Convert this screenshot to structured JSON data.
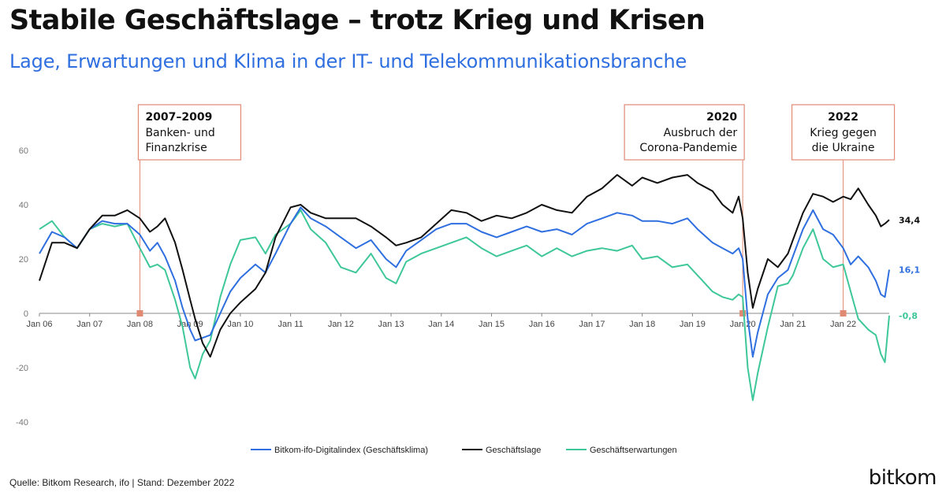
{
  "header": {
    "title": "Stabile Geschäftslage – trotz Krieg und Krisen",
    "subtitle": "Lage, Erwartungen und Klima in der IT- und Telekommunikationsbranche"
  },
  "footer": {
    "source": "Quelle: Bitkom Research, ifo | Stand: Dezember 2022",
    "logo": "bitkom"
  },
  "colors": {
    "klima": "#2f6fe0",
    "lage": "#111111",
    "erwartungen": "#3ec79a",
    "annotation": "#e08a74",
    "axis": "#777777"
  },
  "chart_data": {
    "type": "line",
    "ylim": [
      -40,
      60
    ],
    "yticks": [
      -40,
      -20,
      0,
      20,
      40,
      60
    ],
    "xlim": [
      2006.0,
      2022.917
    ],
    "xticks": [
      {
        "value": 2006,
        "label": "Jan 06"
      },
      {
        "value": 2007,
        "label": "Jan 07"
      },
      {
        "value": 2008,
        "label": "Jan 08"
      },
      {
        "value": 2009,
        "label": "Jan 09"
      },
      {
        "value": 2010,
        "label": "Jan 10"
      },
      {
        "value": 2011,
        "label": "Jan 11"
      },
      {
        "value": 2012,
        "label": "Jan 12"
      },
      {
        "value": 2013,
        "label": "Jan 13"
      },
      {
        "value": 2014,
        "label": "Jan 14"
      },
      {
        "value": 2015,
        "label": "Jan 15"
      },
      {
        "value": 2016,
        "label": "Jan 16"
      },
      {
        "value": 2017,
        "label": "Jan 17"
      },
      {
        "value": 2018,
        "label": "Jan 18"
      },
      {
        "value": 2019,
        "label": "Jan 19"
      },
      {
        "value": 2020,
        "label": "Jan 20"
      },
      {
        "value": 2021,
        "label": "Jan 21"
      },
      {
        "value": 2022,
        "label": "Jan 22"
      }
    ],
    "legend_position": "bottom-center",
    "series": [
      {
        "name": "Bitkom-ifo-Digitalindex (Geschäftsklima)",
        "key": "klima",
        "end_label": "16,1",
        "points": [
          [
            2006.0,
            22
          ],
          [
            2006.25,
            30
          ],
          [
            2006.5,
            28
          ],
          [
            2006.75,
            24
          ],
          [
            2007.0,
            31
          ],
          [
            2007.25,
            34
          ],
          [
            2007.5,
            33
          ],
          [
            2007.75,
            33
          ],
          [
            2008.0,
            29
          ],
          [
            2008.2,
            23
          ],
          [
            2008.35,
            26
          ],
          [
            2008.5,
            21
          ],
          [
            2008.7,
            12
          ],
          [
            2008.85,
            2
          ],
          [
            2009.0,
            -6
          ],
          [
            2009.1,
            -10
          ],
          [
            2009.25,
            -9
          ],
          [
            2009.4,
            -8
          ],
          [
            2009.6,
            0
          ],
          [
            2009.8,
            8
          ],
          [
            2010.0,
            13
          ],
          [
            2010.3,
            18
          ],
          [
            2010.5,
            15
          ],
          [
            2010.7,
            22
          ],
          [
            2011.0,
            33
          ],
          [
            2011.2,
            39
          ],
          [
            2011.4,
            35
          ],
          [
            2011.7,
            32
          ],
          [
            2012.0,
            28
          ],
          [
            2012.3,
            24
          ],
          [
            2012.6,
            27
          ],
          [
            2012.9,
            20
          ],
          [
            2013.1,
            17
          ],
          [
            2013.3,
            23
          ],
          [
            2013.6,
            27
          ],
          [
            2013.9,
            31
          ],
          [
            2014.2,
            33
          ],
          [
            2014.5,
            33
          ],
          [
            2014.8,
            30
          ],
          [
            2015.1,
            28
          ],
          [
            2015.4,
            30
          ],
          [
            2015.7,
            32
          ],
          [
            2016.0,
            30
          ],
          [
            2016.3,
            31
          ],
          [
            2016.6,
            29
          ],
          [
            2016.9,
            33
          ],
          [
            2017.2,
            35
          ],
          [
            2017.5,
            37
          ],
          [
            2017.8,
            36
          ],
          [
            2018.0,
            34
          ],
          [
            2018.3,
            34
          ],
          [
            2018.6,
            33
          ],
          [
            2018.9,
            35
          ],
          [
            2019.1,
            31
          ],
          [
            2019.4,
            26
          ],
          [
            2019.6,
            24
          ],
          [
            2019.8,
            22
          ],
          [
            2019.92,
            24
          ],
          [
            2020.0,
            20
          ],
          [
            2020.1,
            -2
          ],
          [
            2020.2,
            -16
          ],
          [
            2020.3,
            -7
          ],
          [
            2020.5,
            7
          ],
          [
            2020.7,
            13
          ],
          [
            2020.9,
            16
          ],
          [
            2021.0,
            21
          ],
          [
            2021.2,
            31
          ],
          [
            2021.4,
            38
          ],
          [
            2021.6,
            31
          ],
          [
            2021.8,
            29
          ],
          [
            2022.0,
            24
          ],
          [
            2022.15,
            18
          ],
          [
            2022.3,
            21
          ],
          [
            2022.5,
            17
          ],
          [
            2022.65,
            12
          ],
          [
            2022.75,
            7
          ],
          [
            2022.83,
            6
          ],
          [
            2022.917,
            16.1
          ]
        ]
      },
      {
        "name": "Geschäftslage",
        "key": "lage",
        "end_label": "34,4",
        "points": [
          [
            2006.0,
            12
          ],
          [
            2006.25,
            26
          ],
          [
            2006.5,
            26
          ],
          [
            2006.75,
            24
          ],
          [
            2007.0,
            31
          ],
          [
            2007.25,
            36
          ],
          [
            2007.5,
            36
          ],
          [
            2007.75,
            38
          ],
          [
            2008.0,
            35
          ],
          [
            2008.2,
            30
          ],
          [
            2008.35,
            32
          ],
          [
            2008.5,
            35
          ],
          [
            2008.7,
            26
          ],
          [
            2008.85,
            16
          ],
          [
            2009.0,
            5
          ],
          [
            2009.1,
            -2
          ],
          [
            2009.25,
            -11
          ],
          [
            2009.4,
            -16
          ],
          [
            2009.6,
            -6
          ],
          [
            2009.8,
            0
          ],
          [
            2010.0,
            4
          ],
          [
            2010.3,
            9
          ],
          [
            2010.5,
            15
          ],
          [
            2010.7,
            28
          ],
          [
            2011.0,
            39
          ],
          [
            2011.2,
            40
          ],
          [
            2011.4,
            37
          ],
          [
            2011.7,
            35
          ],
          [
            2012.0,
            35
          ],
          [
            2012.3,
            35
          ],
          [
            2012.6,
            32
          ],
          [
            2012.9,
            28
          ],
          [
            2013.1,
            25
          ],
          [
            2013.3,
            26
          ],
          [
            2013.6,
            28
          ],
          [
            2013.9,
            33
          ],
          [
            2014.2,
            38
          ],
          [
            2014.5,
            37
          ],
          [
            2014.8,
            34
          ],
          [
            2015.1,
            36
          ],
          [
            2015.4,
            35
          ],
          [
            2015.7,
            37
          ],
          [
            2016.0,
            40
          ],
          [
            2016.3,
            38
          ],
          [
            2016.6,
            37
          ],
          [
            2016.9,
            43
          ],
          [
            2017.2,
            46
          ],
          [
            2017.5,
            51
          ],
          [
            2017.8,
            47
          ],
          [
            2018.0,
            50
          ],
          [
            2018.3,
            48
          ],
          [
            2018.6,
            50
          ],
          [
            2018.9,
            51
          ],
          [
            2019.1,
            48
          ],
          [
            2019.4,
            45
          ],
          [
            2019.6,
            40
          ],
          [
            2019.8,
            37
          ],
          [
            2019.92,
            43
          ],
          [
            2020.0,
            35
          ],
          [
            2020.1,
            15
          ],
          [
            2020.2,
            2
          ],
          [
            2020.3,
            9
          ],
          [
            2020.5,
            20
          ],
          [
            2020.7,
            17
          ],
          [
            2020.9,
            22
          ],
          [
            2021.0,
            27
          ],
          [
            2021.2,
            37
          ],
          [
            2021.4,
            44
          ],
          [
            2021.6,
            43
          ],
          [
            2021.8,
            41
          ],
          [
            2022.0,
            43
          ],
          [
            2022.15,
            42
          ],
          [
            2022.3,
            46
          ],
          [
            2022.5,
            40
          ],
          [
            2022.65,
            36
          ],
          [
            2022.75,
            32
          ],
          [
            2022.83,
            33
          ],
          [
            2022.917,
            34.4
          ]
        ]
      },
      {
        "name": "Geschäftserwartungen",
        "key": "erwartungen",
        "end_label": "-0,8",
        "points": [
          [
            2006.0,
            31
          ],
          [
            2006.25,
            34
          ],
          [
            2006.5,
            28
          ],
          [
            2006.75,
            24
          ],
          [
            2007.0,
            31
          ],
          [
            2007.25,
            33
          ],
          [
            2007.5,
            32
          ],
          [
            2007.75,
            33
          ],
          [
            2008.0,
            24
          ],
          [
            2008.2,
            17
          ],
          [
            2008.35,
            18
          ],
          [
            2008.5,
            16
          ],
          [
            2008.7,
            5
          ],
          [
            2008.85,
            -5
          ],
          [
            2009.0,
            -20
          ],
          [
            2009.1,
            -24
          ],
          [
            2009.25,
            -15
          ],
          [
            2009.4,
            -10
          ],
          [
            2009.6,
            6
          ],
          [
            2009.8,
            18
          ],
          [
            2010.0,
            27
          ],
          [
            2010.3,
            28
          ],
          [
            2010.5,
            22
          ],
          [
            2010.7,
            29
          ],
          [
            2011.0,
            33
          ],
          [
            2011.2,
            38
          ],
          [
            2011.4,
            31
          ],
          [
            2011.7,
            26
          ],
          [
            2012.0,
            17
          ],
          [
            2012.3,
            15
          ],
          [
            2012.6,
            22
          ],
          [
            2012.9,
            13
          ],
          [
            2013.1,
            11
          ],
          [
            2013.3,
            19
          ],
          [
            2013.6,
            22
          ],
          [
            2013.9,
            24
          ],
          [
            2014.2,
            26
          ],
          [
            2014.5,
            28
          ],
          [
            2014.8,
            24
          ],
          [
            2015.1,
            21
          ],
          [
            2015.4,
            23
          ],
          [
            2015.7,
            25
          ],
          [
            2016.0,
            21
          ],
          [
            2016.3,
            24
          ],
          [
            2016.6,
            21
          ],
          [
            2016.9,
            23
          ],
          [
            2017.2,
            24
          ],
          [
            2017.5,
            23
          ],
          [
            2017.8,
            25
          ],
          [
            2018.0,
            20
          ],
          [
            2018.3,
            21
          ],
          [
            2018.6,
            17
          ],
          [
            2018.9,
            18
          ],
          [
            2019.1,
            14
          ],
          [
            2019.4,
            8
          ],
          [
            2019.6,
            6
          ],
          [
            2019.8,
            5
          ],
          [
            2019.92,
            7
          ],
          [
            2020.0,
            6
          ],
          [
            2020.1,
            -20
          ],
          [
            2020.2,
            -32
          ],
          [
            2020.3,
            -22
          ],
          [
            2020.5,
            -5
          ],
          [
            2020.7,
            10
          ],
          [
            2020.9,
            11
          ],
          [
            2021.0,
            14
          ],
          [
            2021.2,
            24
          ],
          [
            2021.4,
            31
          ],
          [
            2021.6,
            20
          ],
          [
            2021.8,
            17
          ],
          [
            2022.0,
            18
          ],
          [
            2022.15,
            8
          ],
          [
            2022.3,
            -2
          ],
          [
            2022.5,
            -6
          ],
          [
            2022.65,
            -8
          ],
          [
            2022.75,
            -15
          ],
          [
            2022.83,
            -18
          ],
          [
            2022.917,
            -0.8
          ]
        ]
      }
    ],
    "annotations": [
      {
        "x": 2008.0,
        "year": "2007–2009",
        "lines": [
          "Banken- und",
          "Finanzkrise"
        ],
        "align": "left"
      },
      {
        "x": 2020.0,
        "year": "2020",
        "lines": [
          "Ausbruch der",
          "Corona-Pandemie"
        ],
        "align": "right"
      },
      {
        "x": 2022.0,
        "year": "2022",
        "lines": [
          "Krieg gegen",
          "die Ukraine"
        ],
        "align": "center"
      }
    ]
  }
}
